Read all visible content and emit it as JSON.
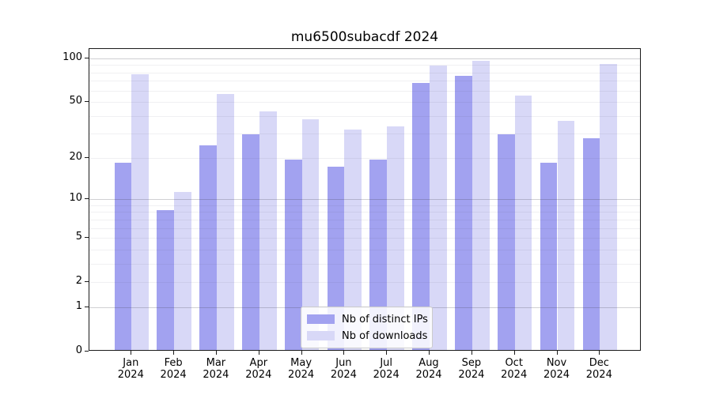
{
  "title": "mu6500subacdf 2024",
  "chart_data": {
    "type": "bar",
    "title": "mu6500subacdf 2024",
    "categories": [
      "Jan",
      "Feb",
      "Mar",
      "Apr",
      "May",
      "Jun",
      "Jul",
      "Aug",
      "Sep",
      "Oct",
      "Nov",
      "Dec"
    ],
    "category_year": "2024",
    "series": [
      {
        "name": "Nb of distinct IPs",
        "color": "#a2a2f0",
        "values": [
          18,
          8,
          24,
          29,
          19,
          17,
          19,
          66,
          74,
          29,
          18,
          27
        ]
      },
      {
        "name": "Nb of downloads",
        "color": "#d8d8f7",
        "values": [
          76,
          11,
          55,
          42,
          37,
          31,
          33,
          87,
          94,
          54,
          36,
          89
        ]
      }
    ],
    "xlabel": "",
    "ylabel": "",
    "yscale": "log1p",
    "ylim": [
      0,
      116
    ],
    "yticks": [
      0,
      1,
      2,
      5,
      10,
      20,
      50,
      100
    ],
    "major_gridlines": [
      1,
      10,
      100
    ],
    "minor_gridlines": [
      2,
      3,
      4,
      5,
      6,
      7,
      8,
      9,
      20,
      30,
      40,
      50,
      60,
      70,
      80,
      90
    ],
    "grid": true,
    "legend_position": "lower-center-inside"
  },
  "legend": {
    "items": [
      {
        "label": "Nb of distinct IPs"
      },
      {
        "label": "Nb of downloads"
      }
    ]
  },
  "colors": {
    "bar_distinct_ips": "#a2a2f0",
    "bar_downloads": "#d8d8f7",
    "grid_major": "#cfcfd3",
    "grid_minor": "#ededed",
    "axis": "#1a1a1a"
  }
}
